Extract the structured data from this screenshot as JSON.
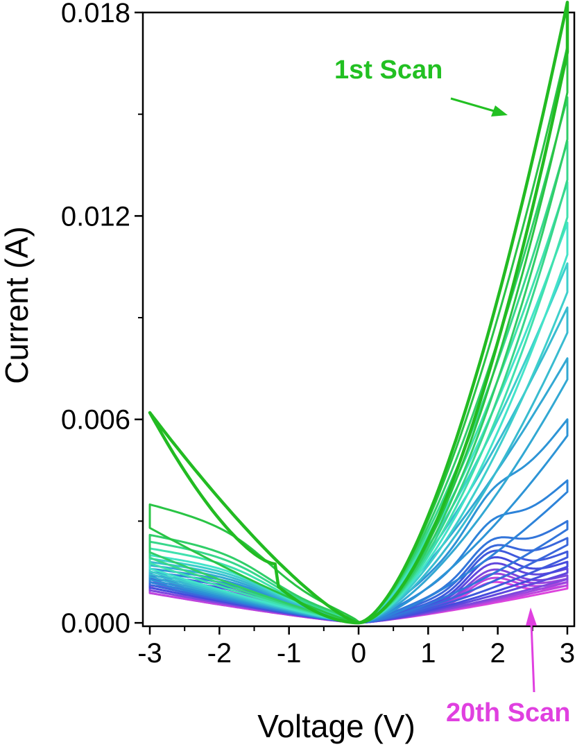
{
  "chart_data": {
    "type": "line",
    "title": "",
    "xlabel": "Voltage (V)",
    "ylabel": "Current (A)",
    "xlim": [
      -3.1,
      3.1
    ],
    "ylim": [
      -0.0001,
      0.018
    ],
    "x_ticks": [
      -3,
      -2,
      -1,
      0,
      1,
      2,
      3
    ],
    "x_tick_labels": [
      "-3",
      "-2",
      "-1",
      "0",
      "1",
      "2",
      "3"
    ],
    "y_ticks": [
      0.0,
      0.006,
      0.012,
      0.018
    ],
    "y_tick_labels": [
      "0.000",
      "0.006",
      "0.012",
      "0.018"
    ],
    "grid": false,
    "num_scans": 20,
    "color_gradient": [
      "#22bb22",
      "#44e8c8",
      "#2a8ad8",
      "#4848dd",
      "#dd44dd"
    ],
    "series": [
      {
        "max_positive_current_A": 0.0183,
        "max_negative_current_A": 0.0062
      },
      {
        "max_positive_current_A": 0.017,
        "max_negative_current_A": 0.0035
      },
      {
        "max_positive_current_A": 0.0155,
        "max_negative_current_A": 0.0026
      },
      {
        "max_positive_current_A": 0.0142,
        "max_negative_current_A": 0.0024
      },
      {
        "max_positive_current_A": 0.013,
        "max_negative_current_A": 0.0022
      },
      {
        "max_positive_current_A": 0.0118,
        "max_negative_current_A": 0.002
      },
      {
        "max_positive_current_A": 0.0106,
        "max_negative_current_A": 0.0019
      },
      {
        "max_positive_current_A": 0.0093,
        "max_negative_current_A": 0.0018
      },
      {
        "max_positive_current_A": 0.0078,
        "max_negative_current_A": 0.0017
      },
      {
        "max_positive_current_A": 0.006,
        "max_negative_current_A": 0.0016
      },
      {
        "max_positive_current_A": 0.0042,
        "max_negative_current_A": 0.0015
      },
      {
        "max_positive_current_A": 0.003,
        "max_negative_current_A": 0.0015
      },
      {
        "max_positive_current_A": 0.0025,
        "max_negative_current_A": 0.0014
      },
      {
        "max_positive_current_A": 0.0021,
        "max_negative_current_A": 0.0014
      },
      {
        "max_positive_current_A": 0.0018,
        "max_negative_current_A": 0.0013
      },
      {
        "max_positive_current_A": 0.0016,
        "max_negative_current_A": 0.0013
      },
      {
        "max_positive_current_A": 0.0014,
        "max_negative_current_A": 0.0012
      },
      {
        "max_positive_current_A": 0.0013,
        "max_negative_current_A": 0.0012
      },
      {
        "max_positive_current_A": 0.0012,
        "max_negative_current_A": 0.0011
      },
      {
        "max_positive_current_A": 0.0011,
        "max_negative_current_A": 0.0011
      }
    ],
    "annotations": [
      {
        "text": "1st Scan",
        "color": "#22c022"
      },
      {
        "text": "20th Scan",
        "color": "#e040e0"
      }
    ]
  }
}
